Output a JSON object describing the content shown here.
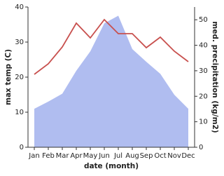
{
  "chart_data": {
    "type": "line",
    "x_label": "date (month)",
    "y_label": "max temp (C)",
    "y2_label": "med. precipitation (kg/m2)",
    "categories": [
      "Jan",
      "Feb",
      "Mar",
      "Apr",
      "May",
      "Jun",
      "Jul",
      "Aug",
      "Sep",
      "Oct",
      "Nov",
      "Dec"
    ],
    "series": [
      {
        "type": "area",
        "axis": "y2",
        "color": "#b0bdf0",
        "values": [
          15.1,
          17.9,
          21,
          30,
          37.6,
          48.6,
          51.6,
          38.5,
          33.5,
          28.8,
          20.6,
          15.1
        ]
      },
      {
        "type": "line",
        "color": "#c8504e",
        "values": [
          20.8,
          23.8,
          28.6,
          35.4,
          31.2,
          36.4,
          32.4,
          32.4,
          28.4,
          31.4,
          27.4,
          24.4
        ]
      }
    ],
    "ylim": [
      0,
      40
    ],
    "yticks": [
      0,
      10,
      20,
      30,
      40
    ],
    "y2lim": [
      0,
      55
    ],
    "y2ticks": [
      0,
      10,
      20,
      30,
      40,
      50
    ]
  }
}
